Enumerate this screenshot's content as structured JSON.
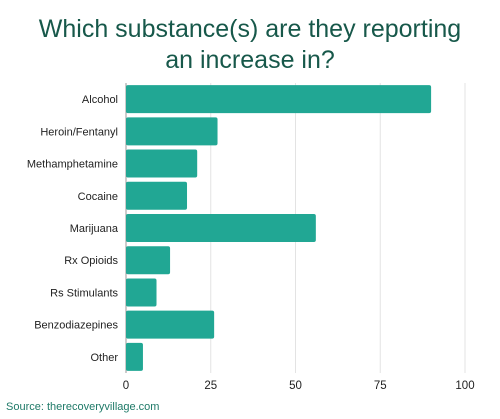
{
  "title_line1": "Which substance(s) are they reporting",
  "title_line2": "an increase in?",
  "source": "Source: therecoveryvillage.com",
  "bar_color": "#21a794",
  "title_color": "#17584a",
  "grid_color": "#e3e3e3",
  "chart_data": {
    "type": "bar",
    "orientation": "horizontal",
    "categories": [
      "Alcohol",
      "Heroin/Fentanyl",
      "Methamphetamine",
      "Cocaine",
      "Marijuana",
      "Rx Opioids",
      "Rs Stimulants",
      "Benzodiazepines",
      "Other"
    ],
    "values": [
      90,
      27,
      21,
      18,
      56,
      13,
      9,
      26,
      5
    ],
    "xticks": [
      0,
      25,
      50,
      75,
      100
    ],
    "xlim": [
      0,
      100
    ],
    "grid": true
  }
}
